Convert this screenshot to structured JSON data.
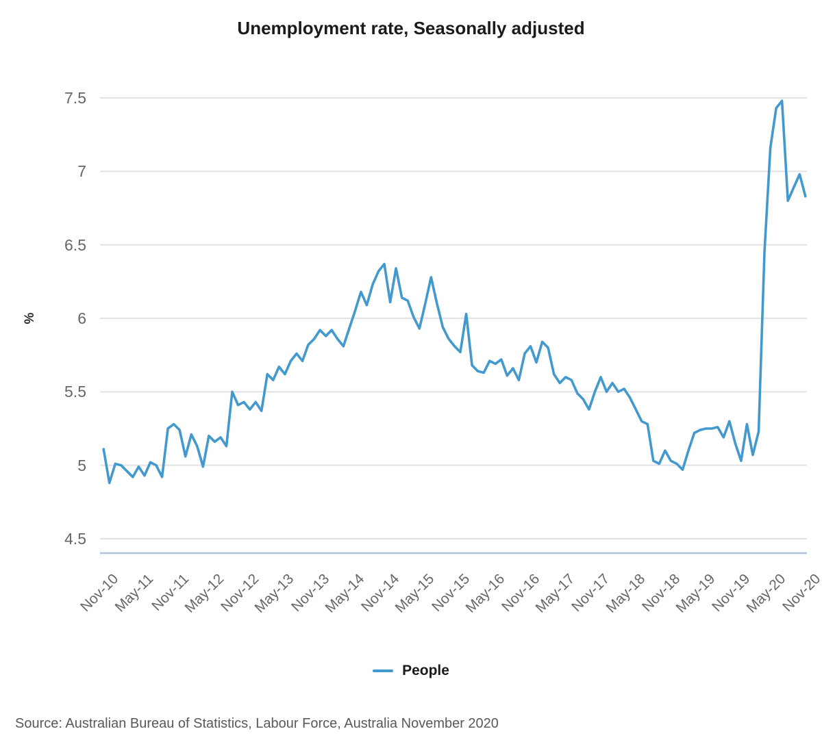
{
  "title": "Unemployment rate, Seasonally adjusted",
  "y_axis": {
    "label": "%"
  },
  "legend": {
    "series_label": "People"
  },
  "source": "Source: Australian Bureau of Statistics, Labour Force, Australia November 2020",
  "colors": {
    "line": "#4299cf",
    "grid": "#e2e2e6",
    "axis_line": "#b4bfda",
    "tick_text": "#666666",
    "title_text": "#1b1b1b",
    "source_text": "#595959"
  },
  "chart_data": {
    "type": "line",
    "title": "Unemployment rate, Seasonally adjusted",
    "xlabel": "",
    "ylabel": "%",
    "ylim": [
      4.5,
      7.5
    ],
    "yticks": [
      7.5,
      7,
      6.5,
      6,
      5.5,
      5,
      4.5
    ],
    "grid": true,
    "legend_position": "bottom",
    "x_start": "Nov-10",
    "x_end": "Nov-20",
    "x_frequency": "monthly",
    "x_tick_every_months": 6,
    "x_tick_labels": [
      "Nov-10",
      "May-11",
      "Nov-11",
      "May-12",
      "Nov-12",
      "May-13",
      "Nov-13",
      "May-14",
      "Nov-14",
      "May-15",
      "Nov-15",
      "May-16",
      "Nov-16",
      "May-17",
      "Nov-17",
      "May-18",
      "Nov-18",
      "May-19",
      "Nov-19",
      "May-20",
      "Nov-20"
    ],
    "series": [
      {
        "name": "People",
        "color": "#4299cf",
        "values": [
          5.11,
          4.88,
          5.01,
          5.0,
          4.96,
          4.92,
          4.99,
          4.93,
          5.02,
          5.0,
          4.92,
          5.25,
          5.28,
          5.24,
          5.06,
          5.21,
          5.13,
          4.99,
          5.2,
          5.16,
          5.19,
          5.13,
          5.5,
          5.41,
          5.43,
          5.38,
          5.43,
          5.37,
          5.62,
          5.58,
          5.67,
          5.62,
          5.71,
          5.76,
          5.71,
          5.82,
          5.86,
          5.92,
          5.88,
          5.92,
          5.86,
          5.81,
          5.93,
          6.05,
          6.18,
          6.09,
          6.23,
          6.32,
          6.37,
          6.11,
          6.34,
          6.14,
          6.12,
          6.01,
          5.93,
          6.1,
          6.28,
          6.1,
          5.94,
          5.86,
          5.81,
          5.77,
          6.03,
          5.68,
          5.64,
          5.63,
          5.71,
          5.69,
          5.72,
          5.61,
          5.66,
          5.58,
          5.76,
          5.81,
          5.7,
          5.84,
          5.8,
          5.62,
          5.56,
          5.6,
          5.58,
          5.49,
          5.45,
          5.38,
          5.5,
          5.6,
          5.5,
          5.56,
          5.5,
          5.52,
          5.46,
          5.38,
          5.3,
          5.28,
          5.03,
          5.01,
          5.1,
          5.03,
          5.01,
          4.97,
          5.1,
          5.22,
          5.24,
          5.25,
          5.25,
          5.26,
          5.19,
          5.3,
          5.15,
          5.03,
          5.28,
          5.07,
          5.23,
          6.45,
          7.16,
          7.43,
          7.48,
          6.8,
          6.89,
          6.98,
          6.83
        ]
      }
    ]
  }
}
